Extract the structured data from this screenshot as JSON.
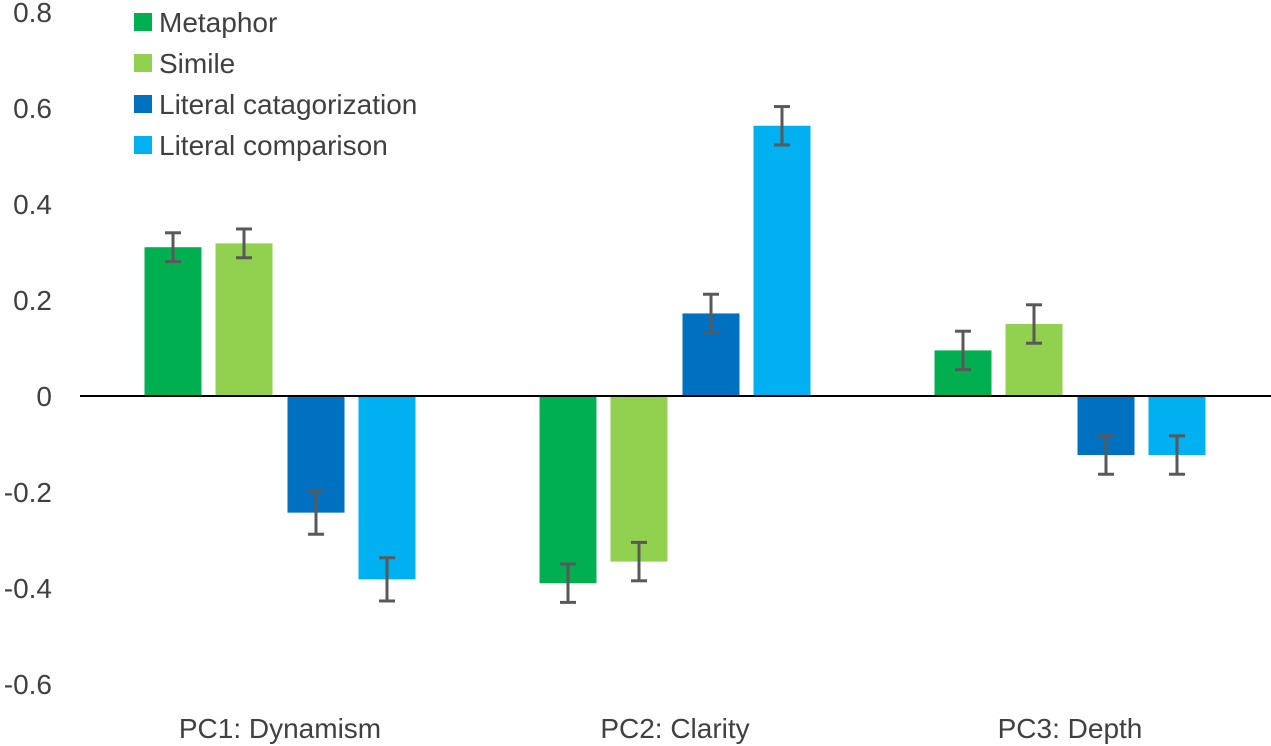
{
  "chart_data": {
    "type": "bar",
    "categories": [
      "PC1: Dynamism",
      "PC2: Clarity",
      "PC3: Depth"
    ],
    "series": [
      {
        "name": "Metaphor",
        "color": "#00b050",
        "values": [
          0.31,
          -0.39,
          0.095
        ],
        "error": [
          0.03,
          0.04,
          0.04
        ]
      },
      {
        "name": "Simile",
        "color": "#92d050",
        "values": [
          0.318,
          -0.345,
          0.15
        ],
        "error": [
          0.03,
          0.04,
          0.04
        ]
      },
      {
        "name": "Literal catagorization",
        "color": "#0070c0",
        "values": [
          -0.243,
          0.172,
          -0.123
        ],
        "error": [
          0.045,
          0.04,
          0.04
        ]
      },
      {
        "name": "Literal comparison",
        "color": "#00b0f0",
        "values": [
          -0.382,
          0.563,
          -0.123
        ],
        "error": [
          0.045,
          0.04,
          0.04
        ]
      }
    ],
    "ylim": [
      -0.6,
      0.8
    ],
    "yticks": [
      0.8,
      0.6,
      0.4,
      0.2,
      0,
      -0.2,
      -0.4,
      -0.6
    ],
    "ytick_labels": [
      "0.8",
      "0.6",
      "0.4",
      "0.2",
      "0",
      "-0.2",
      "-0.4",
      "-0.6"
    ],
    "title": "",
    "xlabel": "",
    "ylabel": "",
    "grid": false,
    "legend_position": "top-left",
    "error_bar_color": "#595959",
    "zero_line_color": "#000000"
  }
}
